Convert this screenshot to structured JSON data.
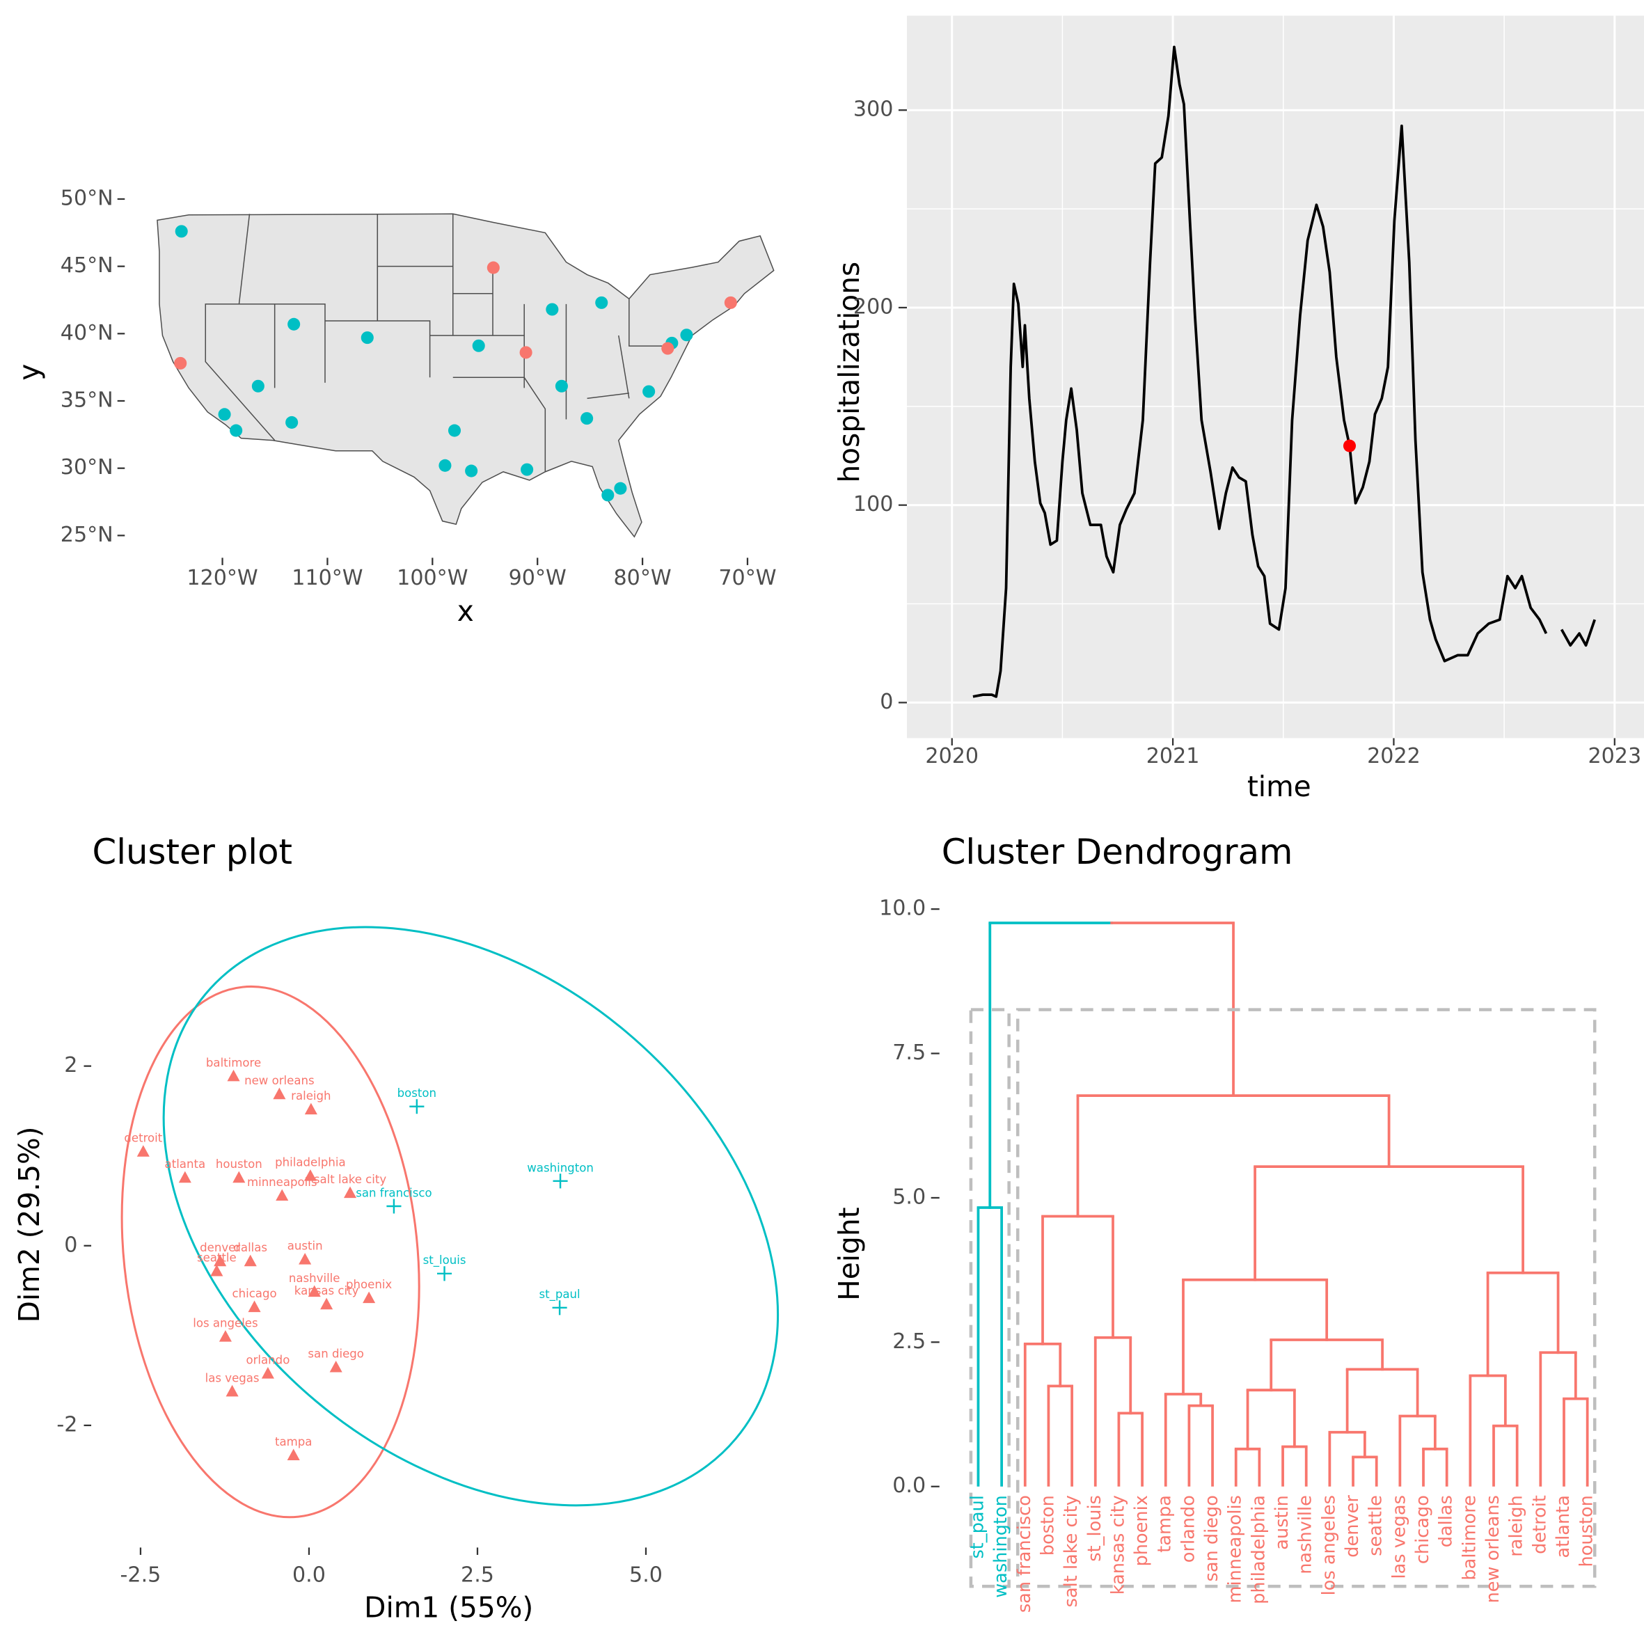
{
  "chart_data": [
    {
      "type": "map",
      "xlabel": "x",
      "ylabel": "y",
      "xlim": [
        -128.4,
        -66.8
      ],
      "ylim": [
        23.5,
        51
      ],
      "xticks": [
        {
          "value": -120,
          "label": "120°W"
        },
        {
          "value": -110,
          "label": "110°W"
        },
        {
          "value": -100,
          "label": "100°W"
        },
        {
          "value": -90,
          "label": "90°W"
        },
        {
          "value": -80,
          "label": "80°W"
        },
        {
          "value": -70,
          "label": "70°W"
        }
      ],
      "yticks": [
        {
          "value": 25,
          "label": "25°N"
        },
        {
          "value": 30,
          "label": "30°N"
        },
        {
          "value": 35,
          "label": "35°N"
        },
        {
          "value": 40,
          "label": "40°N"
        },
        {
          "value": 45,
          "label": "45°N"
        },
        {
          "value": 50,
          "label": "50°N"
        }
      ],
      "series": [
        {
          "color": "#00BFC4",
          "x": [
            -123.9,
            -116.6,
            -119.8,
            -118.7,
            -113.4,
            -113.2,
            -106.2,
            -95.6,
            -88.6,
            -83.9,
            -87.7,
            -85.3,
            -97.9,
            -98.8,
            -96.3,
            -91.0,
            -83.3,
            -82.1,
            -79.4,
            -77.2,
            -75.8
          ],
          "y": [
            47.6,
            36.1,
            34.0,
            32.8,
            33.4,
            40.7,
            39.7,
            39.1,
            41.8,
            42.3,
            36.1,
            33.7,
            32.8,
            30.2,
            29.8,
            29.9,
            28.0,
            28.5,
            35.7,
            39.3,
            39.9
          ]
        },
        {
          "color": "#F8766D",
          "x": [
            -124.0,
            -94.2,
            -91.1,
            -77.6,
            -71.6
          ],
          "y": [
            37.8,
            44.9,
            38.6,
            38.9,
            42.3
          ]
        }
      ]
    },
    {
      "type": "line",
      "xlabel": "time",
      "ylabel": "hospitalizations",
      "xlim": [
        2019.796,
        2023.133
      ],
      "ylim": [
        -18,
        347.8
      ],
      "xticks": [
        2020,
        2021,
        2022,
        2023
      ],
      "yticks": [
        0,
        100,
        200,
        300
      ],
      "xgrid_minor": [
        2020.5,
        2021.5,
        2022.5
      ],
      "ygrid_minor": [
        50,
        150,
        250
      ],
      "grid": true,
      "background": "#EBEBEB",
      "series": [
        {
          "style": "line",
          "color": "#000000",
          "x": [
            2020.095,
            2020.14,
            2020.18,
            2020.2,
            2020.22,
            2020.245,
            2020.266,
            2020.28,
            2020.3,
            2020.32,
            2020.33,
            2020.35,
            2020.375,
            2020.4,
            2020.42,
            2020.446,
            2020.475,
            2020.5,
            2020.517,
            2020.54,
            2020.565,
            2020.59,
            2020.626,
            2020.674,
            2020.7,
            2020.73,
            2020.76,
            2020.79,
            2020.826,
            2020.864,
            2020.897,
            2020.92,
            2020.95,
            2020.98,
            2021.006,
            2021.03,
            2021.05,
            2021.077,
            2021.1,
            2021.13,
            2021.17,
            2021.21,
            2021.24,
            2021.27,
            2021.3,
            2021.33,
            2021.36,
            2021.386,
            2021.414,
            2021.44,
            2021.48,
            2021.51,
            2021.54,
            2021.576,
            2021.61,
            2021.65,
            2021.68,
            2021.71,
            2021.74,
            2021.775,
            2021.8,
            2021.827,
            2021.86,
            2021.89,
            2021.915,
            2021.946,
            2021.974,
            2022.003,
            2022.036,
            2022.07,
            2022.098,
            2022.13,
            2022.164,
            2022.19,
            2022.23,
            2022.29,
            2022.335,
            2022.38,
            2022.43,
            2022.48,
            2022.515,
            2022.55,
            2022.58,
            2022.62,
            2022.66,
            2022.69,
            2022.72,
            2022.76,
            2022.8,
            2022.84,
            2022.87,
            2022.91
          ],
          "values": [
            3,
            4,
            4,
            3,
            16,
            58,
            170,
            212,
            202,
            170,
            191,
            154,
            122,
            101,
            96,
            80,
            82,
            122,
            143,
            159,
            138,
            106,
            90,
            90,
            74,
            66,
            90,
            98,
            106,
            143,
            223,
            273,
            276,
            297,
            332,
            313,
            303,
            244,
            196,
            143,
            117,
            88,
            106,
            119,
            114,
            112,
            85,
            69,
            64,
            40,
            37,
            58,
            143,
            196,
            234,
            252,
            241,
            218,
            175,
            143,
            130,
            101,
            109,
            122,
            146,
            154,
            170,
            244,
            292,
            223,
            133,
            66,
            42,
            32,
            21,
            24,
            24,
            35,
            40,
            42,
            64,
            58,
            64,
            48,
            42,
            35,
            null,
            37,
            29,
            35,
            29,
            42
          ]
        },
        {
          "style": "point",
          "color": "#FF0000",
          "x": [
            2021.8
          ],
          "values": [
            130
          ]
        }
      ]
    },
    {
      "type": "scatter",
      "title": "Cluster plot",
      "xlabel": "Dim1 (55%)",
      "ylabel": "Dim2 (29.5%)",
      "xlim": [
        -3.03,
        7.24
      ],
      "ylim": [
        -3.29,
        3.83
      ],
      "xticks": [
        -2.5,
        {
          "value": 0,
          "label": "0.0"
        },
        2.5,
        {
          "value": 5,
          "label": "5.0"
        }
      ],
      "yticks": [
        -2,
        0,
        2
      ],
      "series": [
        {
          "color": "#F8766D",
          "marker": "triangle",
          "labels": [
            "baltimore",
            "new orleans",
            "raleigh",
            "detroit",
            "atlanta",
            "houston",
            "philadelphia",
            "minneapolis",
            "salt lake city",
            "denver",
            "dallas",
            "seattle",
            "austin",
            "nashville",
            "kansas city",
            "phoenix",
            "chicago",
            "los angeles",
            "orlando",
            "san diego",
            "las vegas",
            "tampa"
          ],
          "x": [
            -1.12,
            -0.44,
            0.03,
            -2.46,
            -1.84,
            -1.04,
            0.02,
            -0.4,
            0.61,
            -1.32,
            -0.87,
            -1.37,
            -0.06,
            0.08,
            0.26,
            0.89,
            -0.81,
            -1.24,
            -0.61,
            0.4,
            -1.14,
            -0.23
          ],
          "y": [
            1.89,
            1.69,
            1.52,
            1.05,
            0.76,
            0.76,
            0.78,
            0.56,
            0.59,
            -0.17,
            -0.17,
            -0.28,
            -0.15,
            -0.51,
            -0.65,
            -0.58,
            -0.68,
            -1.01,
            -1.42,
            -1.35,
            -1.62,
            -2.33
          ]
        },
        {
          "color": "#00BFC4",
          "marker": "plus",
          "labels": [
            "boston",
            "washington",
            "san francisco",
            "st_louis",
            "st_paul"
          ],
          "x": [
            1.6,
            3.73,
            1.26,
            2.01,
            3.72
          ],
          "y": [
            1.55,
            0.72,
            0.44,
            -0.31,
            -0.69
          ]
        }
      ]
    },
    {
      "type": "dendrogram",
      "title": "Cluster Dendrogram",
      "ylabel": "Height",
      "ylim": [
        -0.04,
        10.31
      ],
      "yticks": [
        {
          "value": 0,
          "label": "0.0"
        },
        2.5,
        {
          "value": 5,
          "label": "5.0"
        },
        7.5,
        {
          "value": 10,
          "label": "10.0"
        }
      ],
      "labels": [
        "st_paul",
        "washington",
        "san francisco",
        "boston",
        "salt lake city",
        "st_louis",
        "kansas city",
        "phoenix",
        "tampa",
        "orlando",
        "san diego",
        "minneapolis",
        "philadelphia",
        "austin",
        "nashville",
        "los angeles",
        "denver",
        "seattle",
        "las vegas",
        "chicago",
        "dallas",
        "baltimore",
        "new orleans",
        "raleigh",
        "detroit",
        "atlanta",
        "houston"
      ],
      "merge": [
        [
          -17,
          -18
        ],
        [
          -12,
          -13
        ],
        [
          -20,
          -21
        ],
        [
          -14,
          -15
        ],
        [
          -16,
          1
        ],
        [
          -23,
          -24
        ],
        [
          -19,
          3
        ],
        [
          -7,
          -8
        ],
        [
          -10,
          -11
        ],
        [
          -26,
          -27
        ],
        [
          -9,
          9
        ],
        [
          2,
          4
        ],
        [
          -4,
          -5
        ],
        [
          -22,
          6
        ],
        [
          5,
          7
        ],
        [
          -25,
          10
        ],
        [
          -3,
          13
        ],
        [
          12,
          15
        ],
        [
          -6,
          8
        ],
        [
          11,
          18
        ],
        [
          14,
          16
        ],
        [
          17,
          19
        ],
        [
          -1,
          -2
        ],
        [
          20,
          21
        ],
        [
          22,
          24
        ],
        [
          23,
          25
        ]
      ],
      "height": [
        0.51,
        0.65,
        0.65,
        0.69,
        0.94,
        1.05,
        1.22,
        1.27,
        1.4,
        1.52,
        1.6,
        1.67,
        1.74,
        1.92,
        2.03,
        2.32,
        2.47,
        2.54,
        2.58,
        3.58,
        3.7,
        4.68,
        4.83,
        5.54,
        6.77,
        9.76
      ],
      "colors": [
        "#00BFC4",
        "#F8766D"
      ]
    }
  ]
}
